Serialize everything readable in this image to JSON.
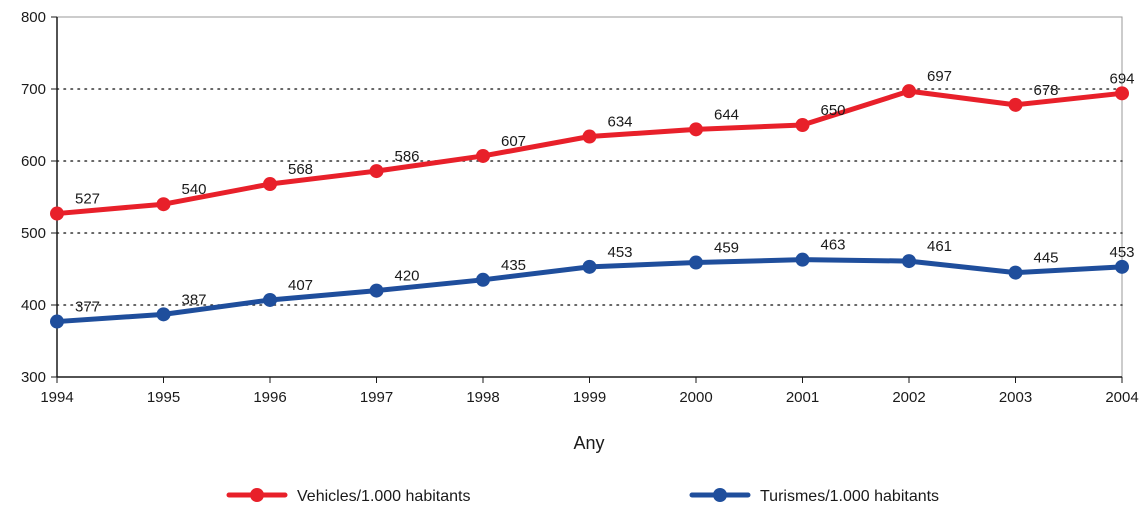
{
  "chart_data": {
    "type": "line",
    "xlabel": "Any",
    "ylabel": "",
    "categories": [
      "1994",
      "1995",
      "1996",
      "1997",
      "1998",
      "1999",
      "2000",
      "2001",
      "2002",
      "2003",
      "2004"
    ],
    "ylim": [
      300,
      800
    ],
    "yticks": [
      300,
      400,
      500,
      600,
      700,
      800
    ],
    "grid": "horizontal dotted",
    "legend_position": "bottom",
    "series": [
      {
        "name": "Vehicles/1.000 habitants",
        "color": "#e8202a",
        "values": [
          527,
          540,
          568,
          586,
          607,
          634,
          644,
          650,
          697,
          678,
          694
        ]
      },
      {
        "name": "Turismes/1.000 habitants",
        "color": "#1f4e9c",
        "values": [
          377,
          387,
          407,
          420,
          435,
          453,
          459,
          463,
          461,
          445,
          453
        ]
      }
    ]
  }
}
